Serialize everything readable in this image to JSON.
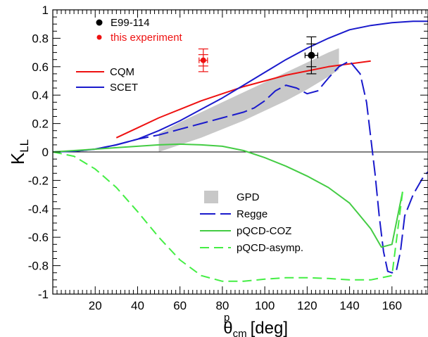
{
  "chart_data": {
    "type": "line",
    "xlabel": "θ",
    "xlabel_sup": "p",
    "xlabel_sub": "cm",
    "xlabel_unit": "[deg]",
    "ylabel": "K",
    "ylabel_sub": "LL",
    "xlim": [
      0,
      177
    ],
    "ylim": [
      -1,
      1
    ],
    "xticks": [
      {
        "v": 20,
        "label": "20"
      },
      {
        "v": 40,
        "label": "40"
      },
      {
        "v": 60,
        "label": "60"
      },
      {
        "v": 80,
        "label": "80"
      },
      {
        "v": 100,
        "label": "100"
      },
      {
        "v": 120,
        "label": "120"
      },
      {
        "v": 140,
        "label": "140"
      },
      {
        "v": 160,
        "label": "160"
      }
    ],
    "yticks": [
      {
        "v": 1,
        "label": "1"
      },
      {
        "v": 0.8,
        "label": "0.8"
      },
      {
        "v": 0.6,
        "label": "0.6"
      },
      {
        "v": 0.4,
        "label": "0.4"
      },
      {
        "v": 0.2,
        "label": "0.2"
      },
      {
        "v": 0,
        "label": "0"
      },
      {
        "v": -0.2,
        "label": "-0.2"
      },
      {
        "v": -0.4,
        "label": "-0.4"
      },
      {
        "v": -0.6,
        "label": "-0.6"
      },
      {
        "v": -0.8,
        "label": "-0.8"
      },
      {
        "v": -1,
        "label": "-1"
      }
    ],
    "zero_line": true,
    "grid": false,
    "series": [
      {
        "name": "CQM",
        "kind": "line",
        "color": "#ee1111",
        "dash": "solid",
        "x": [
          30,
          40,
          50,
          60,
          70,
          80,
          90,
          100,
          110,
          120,
          130,
          140,
          150
        ],
        "y": [
          0.1,
          0.17,
          0.24,
          0.3,
          0.36,
          0.41,
          0.46,
          0.5,
          0.54,
          0.57,
          0.6,
          0.62,
          0.64
        ]
      },
      {
        "name": "SCET",
        "kind": "line",
        "color": "#1a1acc",
        "dash": "solid",
        "x": [
          0,
          10,
          20,
          30,
          40,
          50,
          60,
          70,
          80,
          90,
          100,
          110,
          120,
          130,
          140,
          150,
          160,
          170,
          177
        ],
        "y": [
          0.0,
          0.005,
          0.02,
          0.05,
          0.09,
          0.15,
          0.22,
          0.3,
          0.38,
          0.47,
          0.56,
          0.65,
          0.73,
          0.8,
          0.86,
          0.89,
          0.91,
          0.92,
          0.92
        ]
      },
      {
        "name": "Regge",
        "kind": "line",
        "color": "#1a1acc",
        "dash": "long-dash",
        "x": [
          0,
          10,
          20,
          30,
          40,
          50,
          60,
          70,
          80,
          90,
          95,
          100,
          105,
          110,
          115,
          120,
          125,
          130,
          135,
          140,
          145,
          148,
          150,
          152,
          154,
          156,
          158,
          160,
          162,
          164,
          166,
          170,
          175,
          177
        ],
        "y": [
          0.0,
          0.005,
          0.02,
          0.05,
          0.09,
          0.12,
          0.16,
          0.2,
          0.24,
          0.28,
          0.31,
          0.36,
          0.43,
          0.47,
          0.45,
          0.41,
          0.43,
          0.52,
          0.6,
          0.64,
          0.55,
          0.35,
          0.1,
          -0.15,
          -0.45,
          -0.7,
          -0.84,
          -0.85,
          -0.84,
          -0.7,
          -0.45,
          -0.3,
          -0.17,
          -0.14
        ]
      },
      {
        "name": "pQCD-COZ",
        "kind": "line",
        "color": "#44cc44",
        "dash": "solid",
        "x": [
          0,
          10,
          20,
          30,
          40,
          50,
          60,
          70,
          80,
          90,
          100,
          110,
          120,
          130,
          140,
          150,
          155,
          160,
          165
        ],
        "y": [
          0.0,
          0.01,
          0.02,
          0.03,
          0.04,
          0.05,
          0.055,
          0.05,
          0.04,
          0.01,
          -0.04,
          -0.1,
          -0.17,
          -0.25,
          -0.36,
          -0.54,
          -0.67,
          -0.65,
          -0.28
        ]
      },
      {
        "name": "pQCD-asymp.",
        "kind": "line",
        "color": "#44ee44",
        "dash": "dash",
        "x": [
          0,
          10,
          20,
          30,
          40,
          50,
          60,
          70,
          80,
          90,
          100,
          110,
          120,
          130,
          140,
          150,
          160,
          165
        ],
        "y": [
          0.0,
          -0.03,
          -0.12,
          -0.25,
          -0.42,
          -0.6,
          -0.76,
          -0.87,
          -0.91,
          -0.91,
          -0.895,
          -0.885,
          -0.885,
          -0.89,
          -0.9,
          -0.9,
          -0.87,
          -0.28
        ]
      },
      {
        "name": "GPD",
        "kind": "band",
        "color": "#c8c8c8",
        "x": [
          50,
          60,
          70,
          80,
          90,
          100,
          110,
          120,
          130,
          135
        ],
        "ylo": [
          0.0,
          0.05,
          0.1,
          0.16,
          0.22,
          0.29,
          0.36,
          0.44,
          0.53,
          0.58
        ],
        "yhi": [
          0.13,
          0.21,
          0.28,
          0.35,
          0.42,
          0.49,
          0.56,
          0.63,
          0.7,
          0.73
        ]
      },
      {
        "name": "E99-114",
        "kind": "point",
        "color": "#000000",
        "x": 122,
        "y": 0.68,
        "xerr": 3,
        "yerr_stat": 0.08,
        "yerr_sys": 0.13
      },
      {
        "name": "this experiment",
        "kind": "point",
        "color": "#ee1111",
        "x": 71,
        "y": 0.645,
        "xerr": 2,
        "yerr_stat": 0.04,
        "yerr_sys": 0.08
      }
    ],
    "legend_top": [
      {
        "label": "E99-114",
        "marker": "dot",
        "color": "#000000",
        "text_color": "#000000"
      },
      {
        "label": "this experiment",
        "marker": "dot-small",
        "color": "#ee1111",
        "text_color": "#ee1111"
      }
    ],
    "legend_mid": [
      {
        "label": "CQM",
        "style": "solid",
        "color": "#ee1111"
      },
      {
        "label": "SCET",
        "style": "solid",
        "color": "#1a1acc"
      }
    ],
    "legend_bottom": [
      {
        "label": "GPD",
        "style": "box",
        "color": "#c8c8c8"
      },
      {
        "label": "Regge",
        "style": "long-dash",
        "color": "#1a1acc"
      },
      {
        "label": "pQCD-COZ",
        "style": "solid",
        "color": "#44cc44"
      },
      {
        "label": "pQCD-asymp.",
        "style": "dash",
        "color": "#44ee44"
      }
    ]
  }
}
